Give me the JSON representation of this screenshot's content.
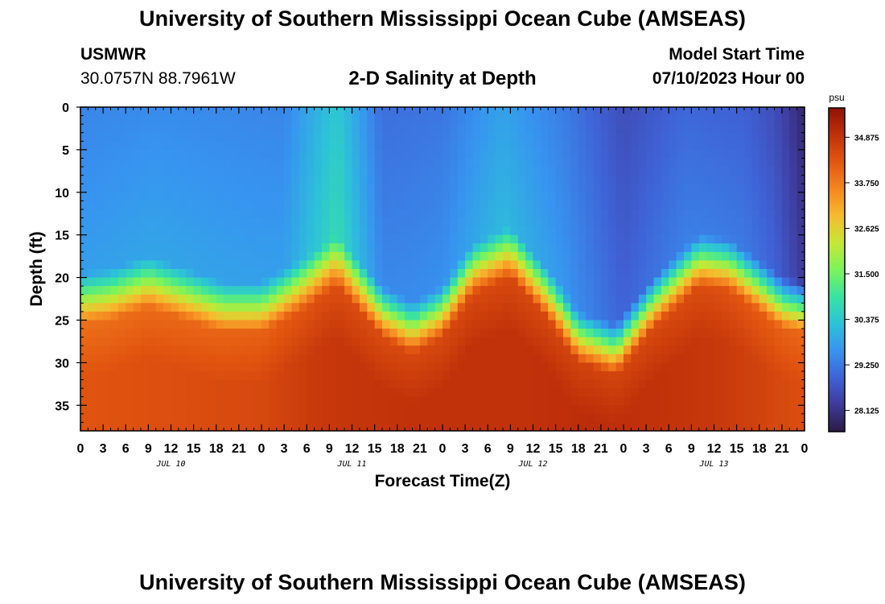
{
  "header": {
    "title": "University of Southern Mississippi Ocean Cube (AMSEAS)",
    "station": "USMWR",
    "coordinates": "30.0757N  88.7961W",
    "subtitle": "2-D Salinity at Depth",
    "start_label": "Model Start Time",
    "start_value": "07/10/2023 Hour 00"
  },
  "footer": {
    "title": "University of Southern Mississippi Ocean Cube (AMSEAS)"
  },
  "chart_data": {
    "type": "heatmap",
    "title": "2-D Salinity at Depth",
    "xlabel": "Forecast Time(Z)",
    "ylabel": "Depth (ft)",
    "x_tick_labels": [
      "0",
      "3",
      "6",
      "9",
      "12",
      "15",
      "18",
      "21",
      "0",
      "3",
      "6",
      "9",
      "12",
      "15",
      "18",
      "21",
      "0",
      "3",
      "6",
      "9",
      "12",
      "15",
      "18",
      "21",
      "0",
      "3",
      "6",
      "9",
      "12",
      "15",
      "18",
      "21",
      "0"
    ],
    "x_range_hours": [
      0,
      96
    ],
    "day_labels": [
      {
        "label": "JUL 10",
        "hour": 12
      },
      {
        "label": "JUL 11",
        "hour": 36
      },
      {
        "label": "JUL 12",
        "hour": 60
      },
      {
        "label": "JUL 13",
        "hour": 84
      }
    ],
    "y_ticks": [
      0,
      5,
      10,
      15,
      20,
      25,
      30,
      35
    ],
    "y_range_ft": [
      0,
      38
    ],
    "y_inverted": true,
    "colorbar": {
      "unit": "psu",
      "ticks": [
        34.875,
        33.75,
        32.625,
        31.5,
        30.375,
        29.25,
        28.125
      ],
      "range": [
        27.6,
        35.6
      ],
      "colors": [
        "#2a1a44",
        "#3e3a9a",
        "#3f62d6",
        "#3794f0",
        "#2cc2d8",
        "#39e2a2",
        "#7cf45a",
        "#c6e734",
        "#f6bb2e",
        "#f58520",
        "#e25610",
        "#c0300a",
        "#8e1306"
      ]
    },
    "halocline_depth_ft": [
      {
        "hour": 0,
        "depth": 23.5
      },
      {
        "hour": 4,
        "depth": 23.0
      },
      {
        "hour": 9,
        "depth": 21.5
      },
      {
        "hour": 14,
        "depth": 23.0
      },
      {
        "hour": 19,
        "depth": 24.5
      },
      {
        "hour": 24,
        "depth": 24.5
      },
      {
        "hour": 30,
        "depth": 21.5
      },
      {
        "hour": 34,
        "depth": 19.0
      },
      {
        "hour": 36,
        "depth": 21.0
      },
      {
        "hour": 40,
        "depth": 25.0
      },
      {
        "hour": 44,
        "depth": 27.0
      },
      {
        "hour": 48,
        "depth": 25.0
      },
      {
        "hour": 52,
        "depth": 20.0
      },
      {
        "hour": 57,
        "depth": 18.0
      },
      {
        "hour": 62,
        "depth": 23.0
      },
      {
        "hour": 66,
        "depth": 28.0
      },
      {
        "hour": 71,
        "depth": 29.5
      },
      {
        "hour": 76,
        "depth": 24.0
      },
      {
        "hour": 82,
        "depth": 19.0
      },
      {
        "hour": 86,
        "depth": 19.5
      },
      {
        "hour": 90,
        "depth": 22.0
      },
      {
        "hour": 93,
        "depth": 24.0
      },
      {
        "hour": 96,
        "depth": 24.5
      }
    ],
    "surface_salinity_psu": [
      {
        "hour": 0,
        "value": 29.4
      },
      {
        "hour": 10,
        "value": 29.5
      },
      {
        "hour": 27,
        "value": 29.4
      },
      {
        "hour": 34,
        "value": 30.4
      },
      {
        "hour": 40,
        "value": 29.1
      },
      {
        "hour": 48,
        "value": 29.2
      },
      {
        "hour": 56,
        "value": 29.8
      },
      {
        "hour": 64,
        "value": 29.3
      },
      {
        "hour": 72,
        "value": 28.6
      },
      {
        "hour": 80,
        "value": 29.0
      },
      {
        "hour": 88,
        "value": 28.9
      },
      {
        "hour": 92,
        "value": 28.6
      },
      {
        "hour": 96,
        "value": 27.9
      }
    ],
    "deep_salinity_psu": [
      {
        "hour": 0,
        "value": 34.3
      },
      {
        "hour": 24,
        "value": 34.5
      },
      {
        "hour": 32,
        "value": 34.8
      },
      {
        "hour": 44,
        "value": 34.9
      },
      {
        "hour": 58,
        "value": 34.9
      },
      {
        "hour": 68,
        "value": 35.0
      },
      {
        "hour": 84,
        "value": 34.8
      },
      {
        "hour": 96,
        "value": 34.4
      }
    ]
  }
}
